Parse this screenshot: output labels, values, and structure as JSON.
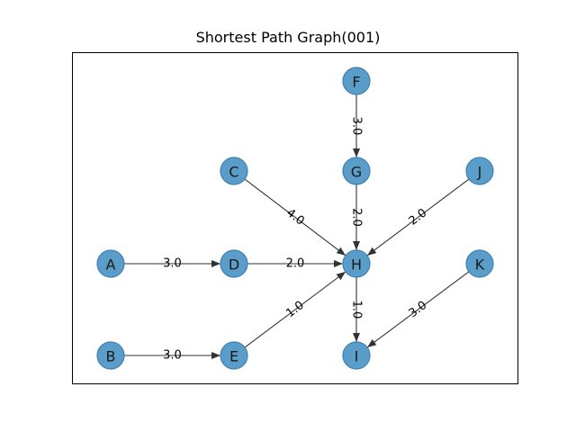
{
  "title": "Shortest Path Graph(001)",
  "colors": {
    "node_fill": "#5b9dc9",
    "node_stroke": "#3f82b4",
    "edge": "#333333",
    "frame": "#000000"
  },
  "nodes": [
    {
      "id": "A",
      "label": "A"
    },
    {
      "id": "B",
      "label": "B"
    },
    {
      "id": "C",
      "label": "C"
    },
    {
      "id": "D",
      "label": "D"
    },
    {
      "id": "E",
      "label": "E"
    },
    {
      "id": "F",
      "label": "F"
    },
    {
      "id": "G",
      "label": "G"
    },
    {
      "id": "H",
      "label": "H"
    },
    {
      "id": "I",
      "label": "I"
    },
    {
      "id": "J",
      "label": "J"
    },
    {
      "id": "K",
      "label": "K"
    }
  ],
  "edges": [
    {
      "from": "A",
      "to": "D",
      "weight": "3.0"
    },
    {
      "from": "B",
      "to": "E",
      "weight": "3.0"
    },
    {
      "from": "D",
      "to": "H",
      "weight": "2.0"
    },
    {
      "from": "C",
      "to": "H",
      "weight": "4.0"
    },
    {
      "from": "E",
      "to": "H",
      "weight": "1.0"
    },
    {
      "from": "F",
      "to": "G",
      "weight": "3.0"
    },
    {
      "from": "G",
      "to": "H",
      "weight": "2.0"
    },
    {
      "from": "J",
      "to": "H",
      "weight": "2.0"
    },
    {
      "from": "H",
      "to": "I",
      "weight": "1.0"
    },
    {
      "from": "K",
      "to": "I",
      "weight": "3.0"
    }
  ]
}
